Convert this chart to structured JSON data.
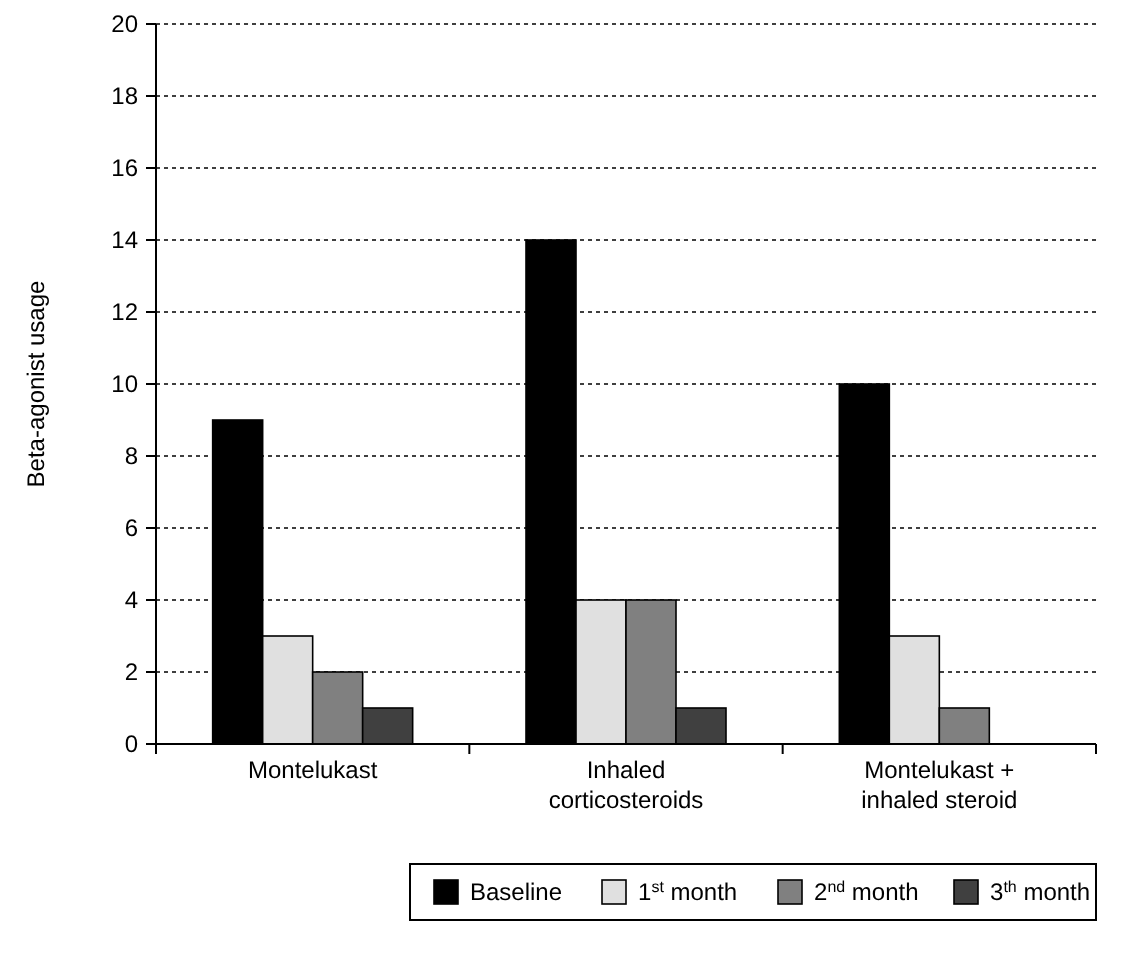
{
  "chart_data": {
    "type": "bar",
    "ylabel": "Beta-agonist usage",
    "categories": [
      "Montelukast",
      "Inhaled corticosteroids",
      "Montelukast + inhaled steroid"
    ],
    "series": [
      {
        "name": "Baseline",
        "color": "#000000",
        "values": [
          9,
          14,
          10
        ]
      },
      {
        "name": "1$^{st}$ month",
        "color": "#e0e0e0",
        "values": [
          3,
          4,
          3
        ]
      },
      {
        "name": "2$^{nd}$ month",
        "color": "#808080",
        "values": [
          2,
          4,
          1
        ]
      },
      {
        "name": "3$^{th}$ month",
        "color": "#404040",
        "values": [
          1,
          1,
          0
        ]
      }
    ],
    "ylim": [
      0,
      20
    ],
    "yticks": [
      0,
      2,
      4,
      6,
      8,
      10,
      12,
      14,
      16,
      18,
      20
    ],
    "grid": "y",
    "legend": "bottom"
  }
}
